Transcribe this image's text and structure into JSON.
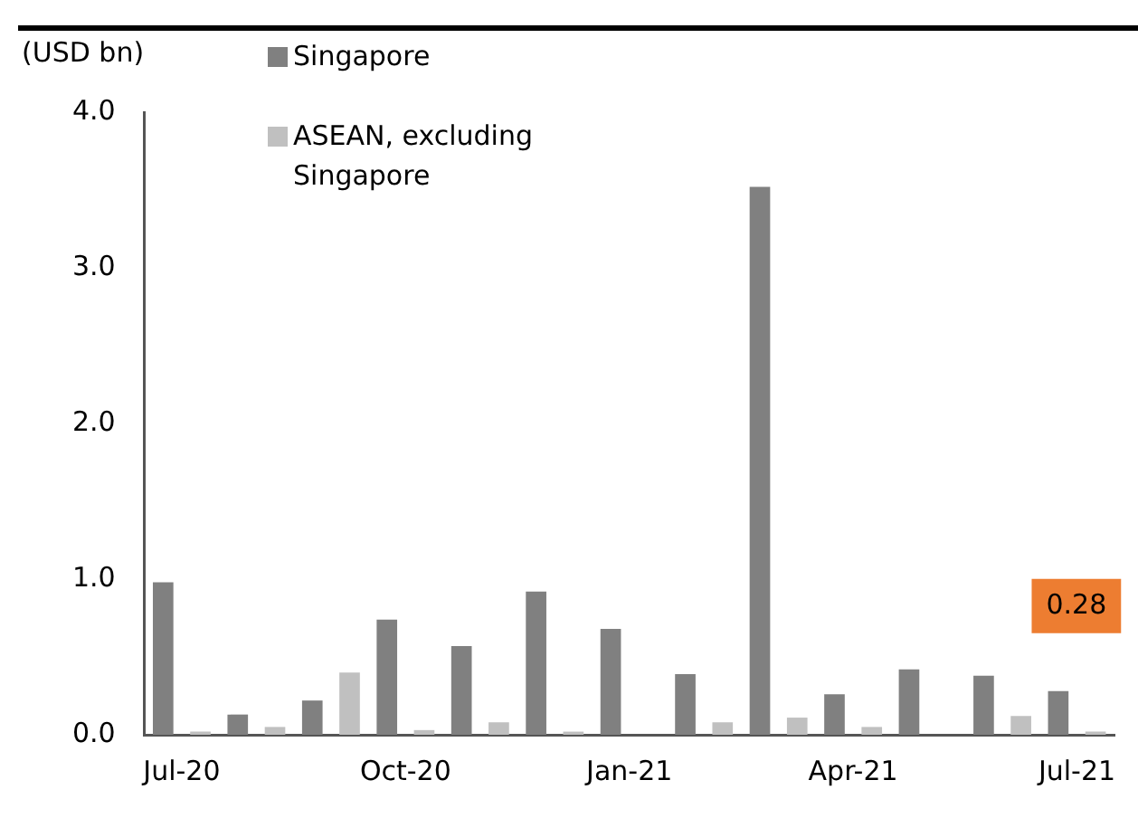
{
  "chart_data": {
    "type": "bar",
    "ylabel": "(USD bn)",
    "categories": [
      "Jul-20",
      null,
      null,
      "Oct-20",
      null,
      null,
      "Jan-21",
      null,
      null,
      "Apr-21",
      null,
      null,
      "Jul-21"
    ],
    "series": [
      {
        "name": "Singapore",
        "color": "#808080",
        "values": [
          0.98,
          0.13,
          0.22,
          0.74,
          0.57,
          0.92,
          0.68,
          0.39,
          3.52,
          0.26,
          0.42,
          0.38,
          0.28
        ],
        "value_labels": [
          null,
          null,
          null,
          null,
          null,
          null,
          null,
          null,
          null,
          null,
          null,
          null,
          "0.28"
        ]
      },
      {
        "name": "ASEAN, excluding Singapore",
        "color": "#c0c0c0",
        "values": [
          0.02,
          0.05,
          0.4,
          0.03,
          0.08,
          0.02,
          0,
          0.08,
          0.11,
          0.05,
          0,
          0.12,
          0.02
        ]
      }
    ],
    "ylim": [
      0,
      4
    ],
    "yticks": [
      {
        "value": 0,
        "label": "0.0"
      },
      {
        "value": 1,
        "label": "1.0"
      },
      {
        "value": 2,
        "label": "2.0"
      },
      {
        "value": 3,
        "label": "3.0"
      },
      {
        "value": 4,
        "label": "4.0"
      }
    ],
    "grid": false,
    "legend": "top left"
  }
}
